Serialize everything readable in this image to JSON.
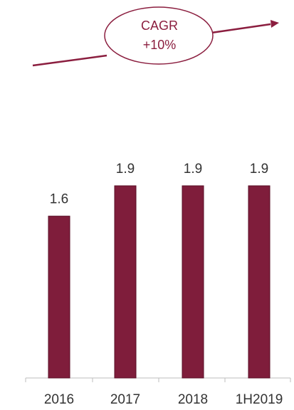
{
  "chart_data": {
    "type": "bar",
    "categories": [
      "2016",
      "2017",
      "2018",
      "1H2019"
    ],
    "values": [
      1.6,
      1.9,
      1.9,
      1.9
    ],
    "value_labels": [
      "1.6",
      "1.9",
      "1.9",
      "1.9"
    ],
    "annotation": {
      "line1": "CAGR",
      "line2": "+10%"
    },
    "colors": {
      "bar": "#7f1d3b",
      "bar_edge": "#5a0f27",
      "accent": "#8b1e3f",
      "axis": "#bdbdbd"
    },
    "grid": false,
    "legend": "none"
  }
}
